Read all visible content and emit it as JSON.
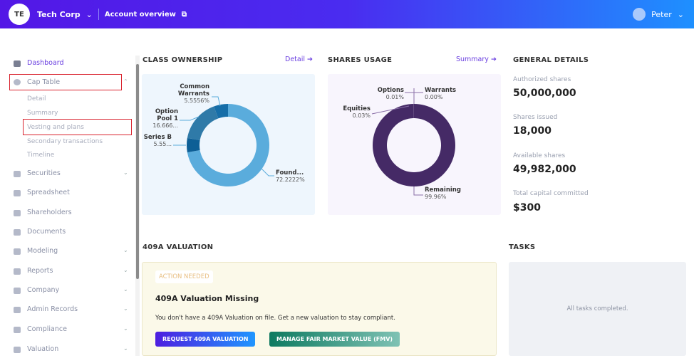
{
  "header": {
    "avatar_initials": "TE",
    "company": "Tech Corp",
    "account_link": "Account overview",
    "user": "Peter"
  },
  "sidebar": {
    "items": [
      {
        "label": "Dashboard",
        "icon": "dashboard-icon"
      },
      {
        "label": "Cap Table",
        "icon": "pie-chart-icon",
        "expanded": true,
        "children": [
          "Detail",
          "Summary",
          "Vesting and plans",
          "Secondary transactions",
          "Timeline"
        ]
      },
      {
        "label": "Securities",
        "icon": "clipboard-icon"
      },
      {
        "label": "Spreadsheet",
        "icon": "table-icon"
      },
      {
        "label": "Shareholders",
        "icon": "person-icon"
      },
      {
        "label": "Documents",
        "icon": "folder-icon"
      },
      {
        "label": "Modeling",
        "icon": "lightbulb-icon"
      },
      {
        "label": "Reports",
        "icon": "report-icon"
      },
      {
        "label": "Company",
        "icon": "building-icon"
      },
      {
        "label": "Admin Records",
        "icon": "records-icon"
      },
      {
        "label": "Compliance",
        "icon": "shield-icon"
      },
      {
        "label": "Valuation",
        "icon": "bar-chart-icon"
      }
    ]
  },
  "class_ownership": {
    "title": "CLASS OWNERSHIP",
    "link": "Detail",
    "slices": [
      {
        "name": "Found...",
        "label": "72.2222%",
        "value": 72.2222,
        "color": "#5aacdc"
      },
      {
        "name": "Series B",
        "label": "5.55...",
        "value": 5.5556,
        "color": "#0d5f96"
      },
      {
        "name": "Option Pool 1",
        "label": "16.666...",
        "value": 16.6667,
        "color": "#2f7aa8"
      },
      {
        "name": "Common Warrants",
        "label": "5.5556%",
        "value": 5.5556,
        "color": "#166ea8"
      }
    ]
  },
  "shares_usage": {
    "title": "SHARES USAGE",
    "link": "Summary",
    "slices": [
      {
        "name": "Remaining",
        "label": "99.96%",
        "value": 99.96,
        "color": "#452a66"
      },
      {
        "name": "Equities",
        "label": "0.03%",
        "value": 0.03,
        "color": "#b8a8cc"
      },
      {
        "name": "Options",
        "label": "0.01%",
        "value": 0.01,
        "color": "#8a70a8"
      },
      {
        "name": "Warrants",
        "label": "0.00%",
        "value": 0.0,
        "color": "#8a70a8"
      }
    ]
  },
  "general": {
    "title": "GENERAL DETAILS",
    "rows": [
      {
        "label": "Authorized shares",
        "value": "50,000,000"
      },
      {
        "label": "Shares issued",
        "value": "18,000"
      },
      {
        "label": "Available shares",
        "value": "49,982,000"
      },
      {
        "label": "Total capital committed",
        "value": "$300"
      }
    ]
  },
  "valuation": {
    "title": "409A VALUATION",
    "badge": "ACTION NEEDED",
    "heading": "409A Valuation Missing",
    "text": "You don't have a 409A Valuation on file. Get a new valuation to stay compliant.",
    "btn_request": "REQUEST 409A VALUATION",
    "btn_manage": "MANAGE FAIR MARKET VALUE (FMV)"
  },
  "tasks": {
    "title": "TASKS",
    "empty": "All tasks completed."
  }
}
